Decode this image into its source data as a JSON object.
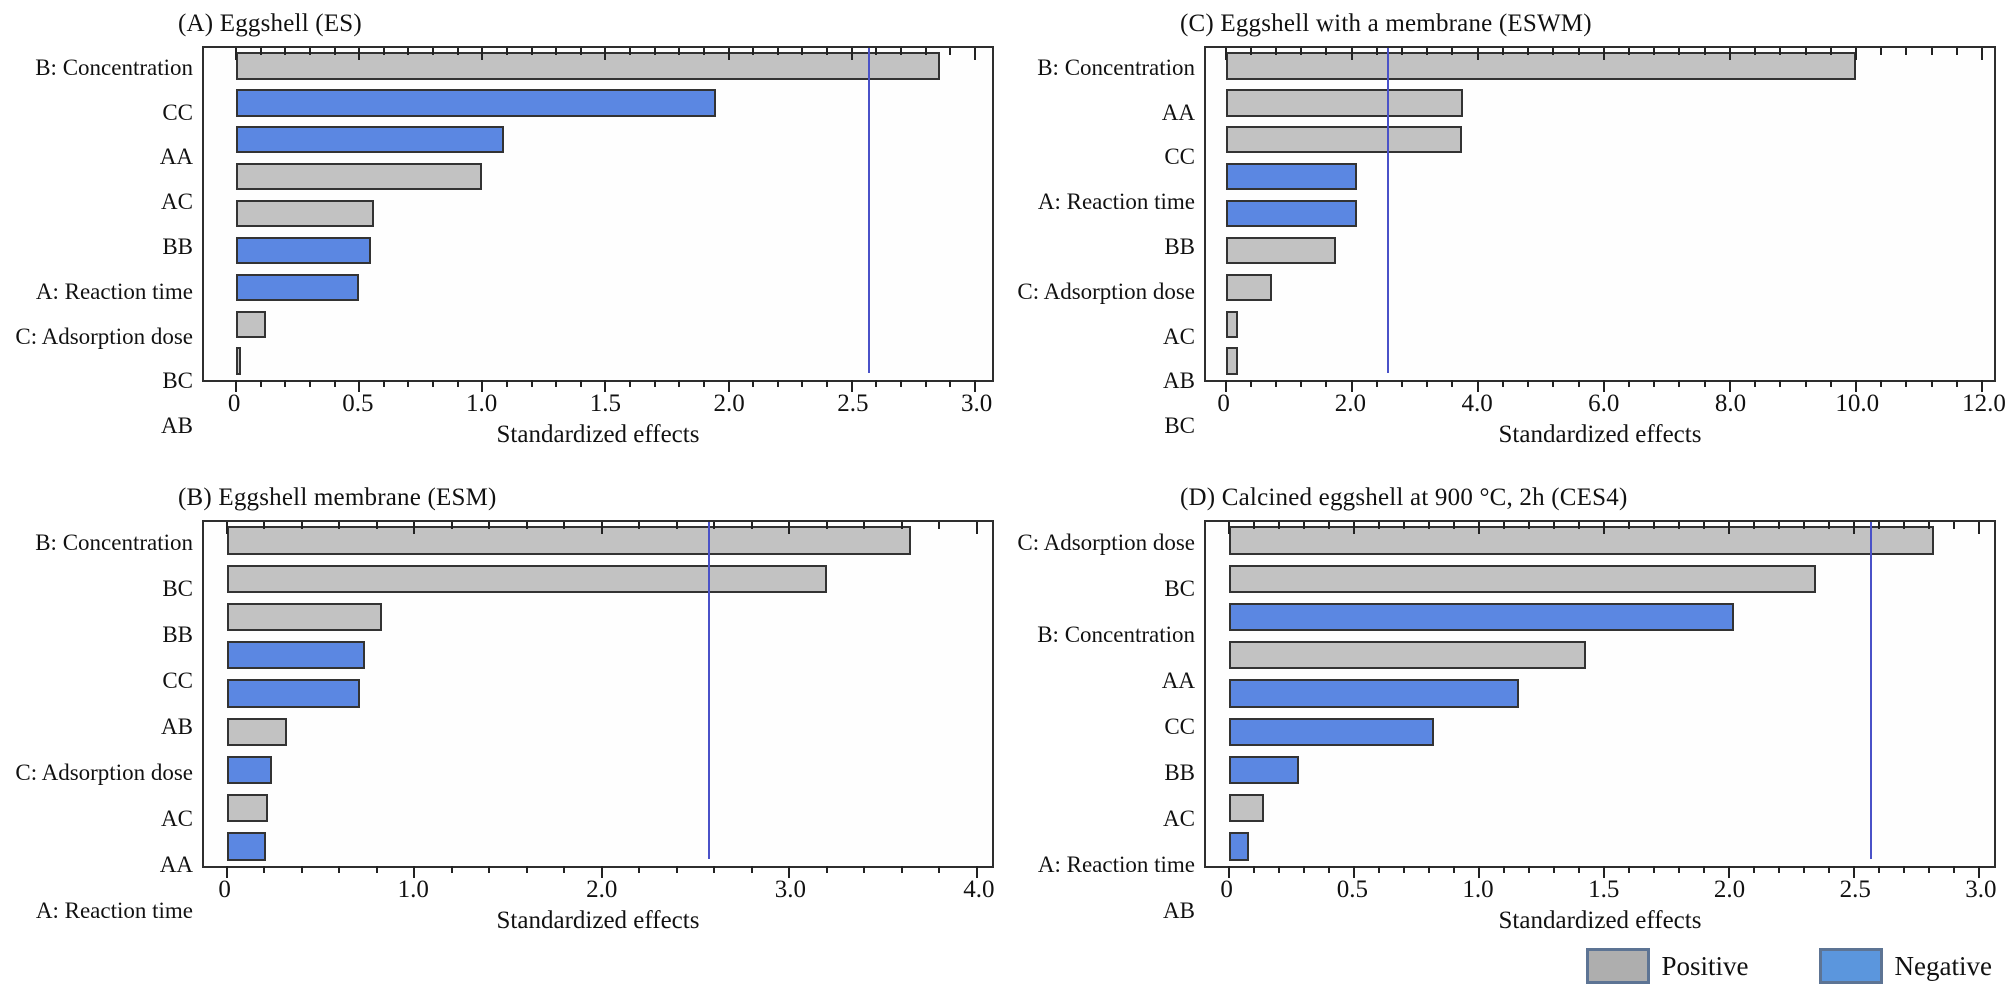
{
  "figure": {
    "xlabel": "Standardized effects",
    "ref_line_value": 2.57,
    "colors": {
      "positive": "#c2c2c2",
      "negative": "#5b87e2",
      "bar_border": "#333333",
      "ref_line": "#4a52c8",
      "plot_border": "#2e2e2e"
    },
    "legend": {
      "position": "bottom-right",
      "items": [
        {
          "label": "Positive",
          "color": "#aeaeae"
        },
        {
          "label": "Negative",
          "color": "#5b96dd"
        }
      ]
    }
  },
  "chart_data": [
    {
      "type": "bar",
      "orientation": "horizontal",
      "panel": "A",
      "title": "(A) Eggshell (ES)",
      "xlabel": "Standardized effects",
      "ylabel": "",
      "grid": false,
      "categories": [
        "B: Concentration",
        "CC",
        "AA",
        "AC",
        "BB",
        "A: Reaction time",
        "C: Adsorption dose",
        "BC",
        "AB"
      ],
      "values": [
        2.86,
        1.95,
        1.09,
        1.0,
        0.56,
        0.55,
        0.5,
        0.12,
        0.02
      ],
      "signs": [
        "positive",
        "negative",
        "negative",
        "positive",
        "positive",
        "negative",
        "negative",
        "positive",
        "positive"
      ],
      "ref_line": 2.57,
      "xlim": [
        -0.13,
        3.07
      ],
      "xtick_values": [
        0,
        0.5,
        1.0,
        1.5,
        2.0,
        2.5,
        3.0
      ],
      "xtick_labels": [
        "0",
        "0.5",
        "1.0",
        "1.5",
        "2.0",
        "2.5",
        "3.0"
      ],
      "minor_tick_step": 0.1
    },
    {
      "type": "bar",
      "orientation": "horizontal",
      "panel": "B",
      "title": "(B) Eggshell membrane (ESM)",
      "xlabel": "Standardized effects",
      "ylabel": "",
      "grid": false,
      "categories": [
        "B: Concentration",
        "BC",
        "BB",
        "CC",
        "AB",
        "C: Adsorption dose",
        "AC",
        "AA",
        "A: Reaction time"
      ],
      "values": [
        3.65,
        3.2,
        0.83,
        0.74,
        0.71,
        0.32,
        0.24,
        0.22,
        0.21
      ],
      "signs": [
        "positive",
        "positive",
        "positive",
        "negative",
        "negative",
        "positive",
        "negative",
        "positive",
        "negative"
      ],
      "ref_line": 2.57,
      "xlim": [
        -0.12,
        4.08
      ],
      "xtick_values": [
        0,
        1.0,
        2.0,
        3.0,
        4.0
      ],
      "xtick_labels": [
        "0",
        "1.0",
        "2.0",
        "3.0",
        "4.0"
      ],
      "minor_tick_step": 0.2
    },
    {
      "type": "bar",
      "orientation": "horizontal",
      "panel": "C",
      "title": "(C) Eggshell with a membrane (ESWM)",
      "xlabel": "Standardized effects",
      "ylabel": "",
      "grid": false,
      "categories": [
        "B: Concentration",
        "AA",
        "CC",
        "A: Reaction time",
        "BB",
        "C: Adsorption dose",
        "AC",
        "AB",
        "BC"
      ],
      "values": [
        10.0,
        3.77,
        3.75,
        2.08,
        2.08,
        1.76,
        0.73,
        0.2,
        0.2
      ],
      "signs": [
        "positive",
        "positive",
        "positive",
        "negative",
        "negative",
        "positive",
        "positive",
        "positive",
        "positive"
      ],
      "ref_line": 2.57,
      "xlim": [
        -0.31,
        12.19
      ],
      "xtick_values": [
        0,
        2.0,
        4.0,
        6.0,
        8.0,
        10.0,
        12.0
      ],
      "xtick_labels": [
        "0",
        "2.0",
        "4.0",
        "6.0",
        "8.0",
        "10.0",
        "12.0"
      ],
      "minor_tick_step": 0.4
    },
    {
      "type": "bar",
      "orientation": "horizontal",
      "panel": "D",
      "title": "(D) Calcined eggshell at 900 °C, 2h (CES4)",
      "xlabel": "Standardized effects",
      "ylabel": "",
      "grid": false,
      "categories": [
        "C: Adsorption dose",
        "BC",
        "B: Concentration",
        "AA",
        "CC",
        "BB",
        "AC",
        "A: Reaction time",
        "AB"
      ],
      "values": [
        2.82,
        2.35,
        2.02,
        1.43,
        1.16,
        0.82,
        0.28,
        0.14,
        0.08
      ],
      "signs": [
        "positive",
        "positive",
        "negative",
        "positive",
        "negative",
        "negative",
        "negative",
        "positive",
        "negative"
      ],
      "ref_line": 2.57,
      "xlim": [
        -0.09,
        3.06
      ],
      "xtick_values": [
        0,
        0.5,
        1.0,
        1.5,
        2.0,
        2.5,
        3.0
      ],
      "xtick_labels": [
        "0",
        "0.5",
        "1.0",
        "1.5",
        "2.0",
        "2.5",
        "3.0"
      ],
      "minor_tick_step": 0.1
    }
  ]
}
